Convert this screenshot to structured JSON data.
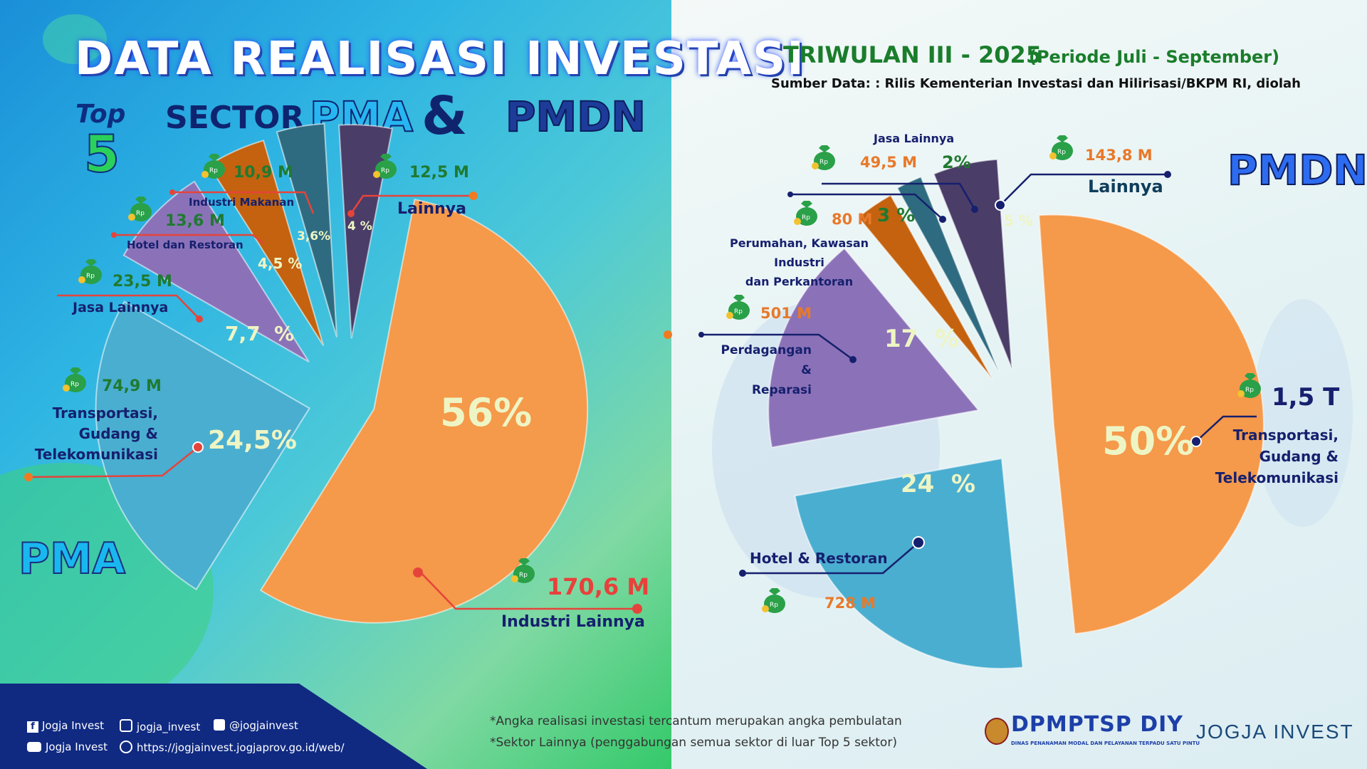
{
  "header": {
    "title": "DATA REALISASI INVESTASI",
    "top5_word": "Top",
    "top5_num": "5",
    "sector_word": "SECTOR",
    "pma": "PMA",
    "amp": "&",
    "pmdn": "PMDN",
    "period_title": "TRIWULAN III - 2025",
    "period_sub": "(Periode Juli - September)",
    "source": "Sumber Data: : Rilis Kementerian Investasi dan Hilirisasi/BKPM RI, diolah"
  },
  "section_labels": {
    "pma": "PMA",
    "pmdn": "PMDN"
  },
  "chart_data": [
    {
      "type": "pie",
      "title": "PMA",
      "categories": [
        "Industri Lainnya",
        "Transportasi, Gudang & Telekomunikasi",
        "Jasa Lainnya",
        "Hotel dan Restoran",
        "Industri Makanan",
        "Lainnya"
      ],
      "values": [
        56,
        24.5,
        7.7,
        4.5,
        3.6,
        4
      ],
      "percent_labels": [
        "56%",
        "24,5%",
        "7,7  %",
        "4,5 %",
        "3,6%",
        "4 %"
      ],
      "amounts": [
        "170,6 M",
        "74,9 M",
        "23,5 M",
        "13,6 M",
        "10,9 M",
        "12,5 M"
      ],
      "colors": [
        "#f5994a",
        "#4aaed0",
        "#8b72b8",
        "#c4620f",
        "#2e6b80",
        "#4a3d68"
      ]
    },
    {
      "type": "pie",
      "title": "PMDN",
      "categories": [
        "Transportasi, Gudang & Telekomunikasi",
        "Hotel & Restoran",
        "Perdagangan & Reparasi",
        "Perumahan, Kawasan Industri dan Perkantoran",
        "Jasa Lainnya",
        "Lainnya"
      ],
      "values": [
        50,
        24,
        17,
        3,
        2,
        5
      ],
      "percent_labels": [
        "50%",
        "24  %",
        "17  %",
        "3 %",
        "2%",
        "5 %"
      ],
      "amounts": [
        "1,5 T",
        "728 M",
        "501 M",
        "80 M",
        "49,5 M",
        "143,8 M"
      ],
      "colors": [
        "#f5994a",
        "#4aaed0",
        "#8b72b8",
        "#c4620f",
        "#2e6b80",
        "#4a3d68"
      ]
    }
  ],
  "pma_labels": {
    "industri_lainnya": "Industri Lainnya",
    "transportasi": "Transportasi,\nGudang &\nTelekomunikasi",
    "jasa": "Jasa Lainnya",
    "hotel": "Hotel dan Restoran",
    "makanan": "Industri Makanan",
    "lainnya": "Lainnya"
  },
  "pmdn_labels": {
    "transportasi": "Transportasi,\nGudang &\nTelekomunikasi",
    "hotel": "Hotel & Restoran",
    "perdagangan": "Perdagangan &\nReparasi",
    "perumahan": "Perumahan, Kawasan Industri\ndan Perkantoran",
    "jasa": "Jasa Lainnya",
    "lainnya": "Lainnya"
  },
  "notes": [
    "*Angka realisasi investasi tercantum merupakan angka pembulatan",
    "*Sektor Lainnya (penggabungan semua sektor di luar Top 5 sektor)"
  ],
  "social": {
    "facebook": "Jogja Invest",
    "instagram": "jogja_invest",
    "twitter": "@jogjainvest",
    "youtube": "Jogja Invest",
    "website": "https://jogjainvest.jogjaprov.go.id/web/"
  },
  "logos": {
    "dpmptsp": "DPMPTSP DIY",
    "dpmptsp_sub": "DINAS PENANAMAN MODAL DAN PELAYANAN TERPADU SATU PINTU",
    "jogja_invest": "JOGJA INVEST"
  },
  "bag_text": "Rp",
  "colors": {
    "navy": "#16206e",
    "orange_text": "#e8792a",
    "green_text": "#1f7a30"
  }
}
